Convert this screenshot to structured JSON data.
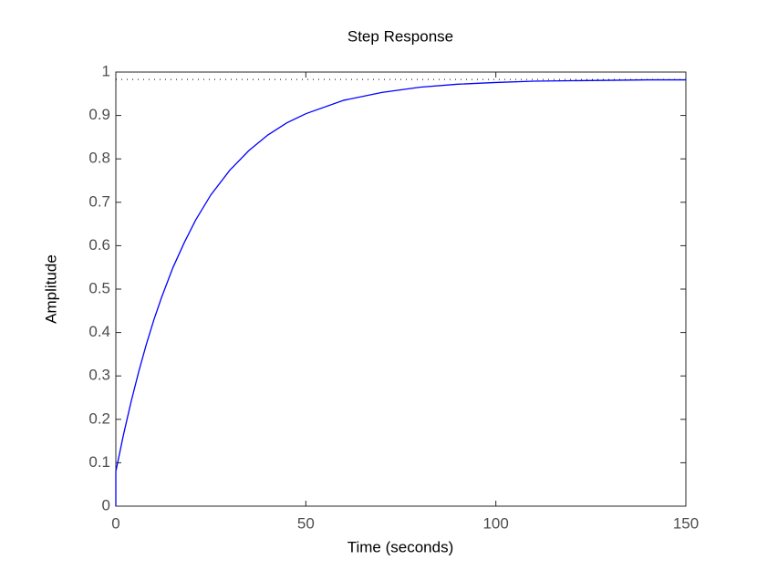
{
  "chart_data": {
    "type": "line",
    "title": "Step Response",
    "x_label": "Time (seconds)",
    "y_label": "Amplitude",
    "x": [
      0,
      0,
      2,
      4,
      6,
      8,
      10,
      12,
      15,
      18,
      21,
      25,
      30,
      35,
      40,
      45,
      50,
      60,
      70,
      80,
      90,
      100,
      110,
      120,
      130,
      140,
      150
    ],
    "series": [
      {
        "color": "#0000ff",
        "values": [
          0,
          0.08,
          0.164,
          0.24,
          0.309,
          0.372,
          0.429,
          0.48,
          0.549,
          0.607,
          0.659,
          0.717,
          0.774,
          0.819,
          0.855,
          0.883,
          0.904,
          0.935,
          0.953,
          0.965,
          0.972,
          0.976,
          0.979,
          0.98,
          0.981,
          0.982,
          0.982
        ]
      }
    ],
    "final_value": 0.983,
    "xlim": [
      0,
      150
    ],
    "xticks": [
      0,
      50,
      100,
      150
    ],
    "ylim": [
      0,
      1
    ],
    "yticks": [
      0,
      0.1,
      0.2,
      0.3,
      0.4,
      0.5,
      0.6,
      0.7,
      0.8,
      0.9,
      1
    ]
  }
}
